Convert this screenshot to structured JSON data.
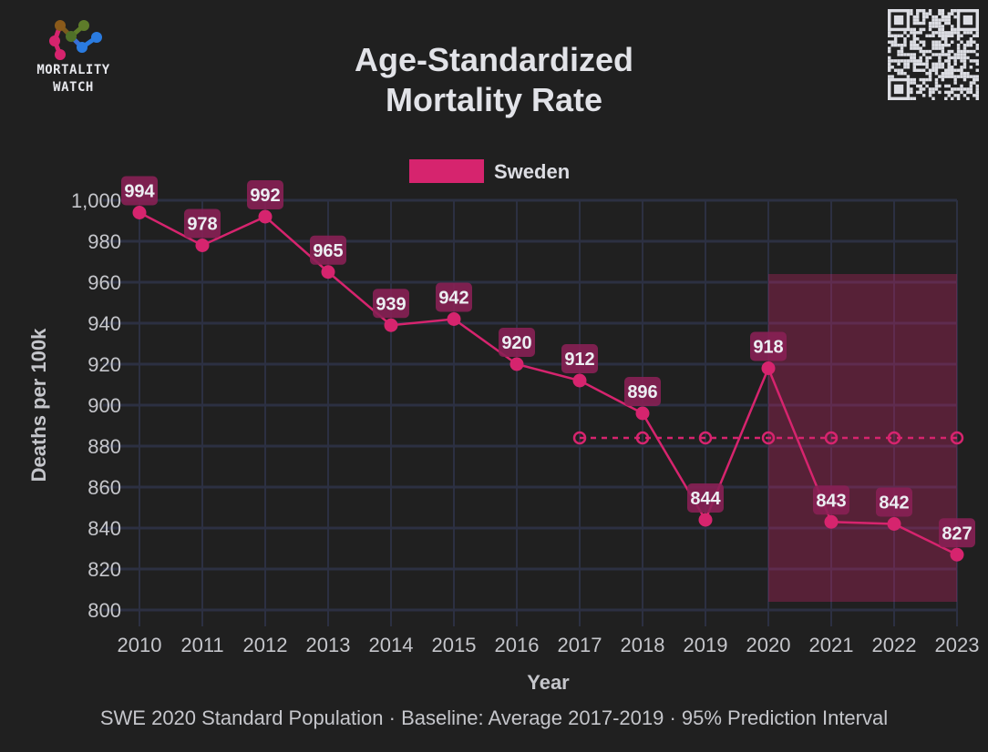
{
  "logo": {
    "line1": "MORTALITY",
    "line2": "WATCH"
  },
  "title": {
    "line1": "Age-Standardized",
    "line2": "Mortality Rate"
  },
  "footer": "SWE 2020 Standard Population · Baseline: Average 2017-2019 · 95% Prediction Interval",
  "colors": {
    "background": "#202020",
    "series": "#d6246e",
    "label_bg": "#8a2055",
    "grid": "#2c3042",
    "interval_fill": "#5c2140",
    "text": "#dcdde3"
  },
  "chart_data": {
    "type": "line",
    "title": "Age-Standardized Mortality Rate",
    "xlabel": "Year",
    "ylabel": "Deaths per 100k",
    "x": [
      2010,
      2011,
      2012,
      2013,
      2014,
      2015,
      2016,
      2017,
      2018,
      2019,
      2020,
      2021,
      2022,
      2023
    ],
    "x_tick_labels": [
      "2010",
      "2011",
      "2012",
      "2013",
      "2014",
      "2015",
      "2016",
      "2017",
      "2018",
      "2019",
      "2020",
      "2021",
      "2022",
      "2023"
    ],
    "ylim": [
      800,
      1000
    ],
    "y_ticks": [
      800,
      820,
      840,
      860,
      880,
      900,
      920,
      940,
      960,
      980,
      1000
    ],
    "y_tick_labels": [
      "800",
      "820",
      "840",
      "860",
      "880",
      "900",
      "920",
      "940",
      "960",
      "980",
      "1,000"
    ],
    "grid": true,
    "legend": {
      "position": "top-center",
      "entries": [
        "Sweden"
      ]
    },
    "series": [
      {
        "name": "Sweden",
        "values": [
          994,
          978,
          992,
          965,
          939,
          942,
          920,
          912,
          896,
          844,
          918,
          843,
          842,
          827
        ],
        "data_labels": [
          "994",
          "978",
          "992",
          "965",
          "939",
          "942",
          "920",
          "912",
          "896",
          "844",
          "918",
          "843",
          "842",
          "827"
        ]
      },
      {
        "name": "Baseline (Average 2017-2019)",
        "style": "dashed",
        "x": [
          2017,
          2018,
          2019,
          2020,
          2021,
          2022,
          2023
        ],
        "values": [
          884,
          884,
          884,
          884,
          884,
          884,
          884
        ]
      }
    ],
    "prediction_interval": {
      "label": "95% Prediction Interval",
      "x_range": [
        2020,
        2023
      ],
      "lower": 804,
      "upper": 964
    }
  }
}
